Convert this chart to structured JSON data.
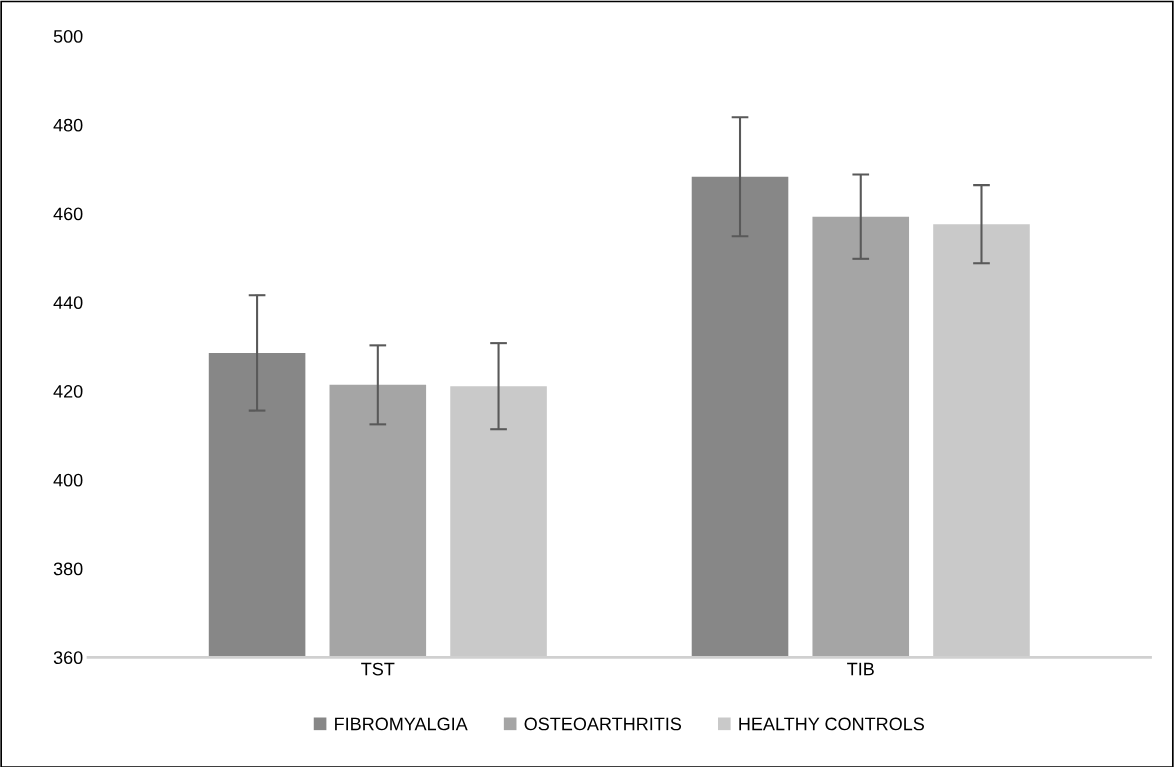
{
  "chart_data": {
    "type": "bar",
    "categories": [
      "TST",
      "TIB"
    ],
    "series": [
      {
        "name": "FIBROMYALGIA",
        "color": "#878787",
        "values": [
          428.6,
          468.3
        ],
        "errors": [
          13,
          13.4
        ]
      },
      {
        "name": "OSTEOARTHRITIS",
        "color": "#a5a5a5",
        "values": [
          421.4,
          459.3
        ],
        "errors": [
          8.9,
          9.5
        ]
      },
      {
        "name": "HEALTHY CONTROLS",
        "color": "#c9c9c9",
        "values": [
          421.1,
          457.6
        ],
        "errors": [
          9.7,
          8.8
        ]
      }
    ],
    "ylim": [
      360,
      500
    ],
    "yticks": [
      360,
      380,
      400,
      420,
      440,
      460,
      480,
      500
    ],
    "grid": false,
    "legend": "bottom"
  }
}
